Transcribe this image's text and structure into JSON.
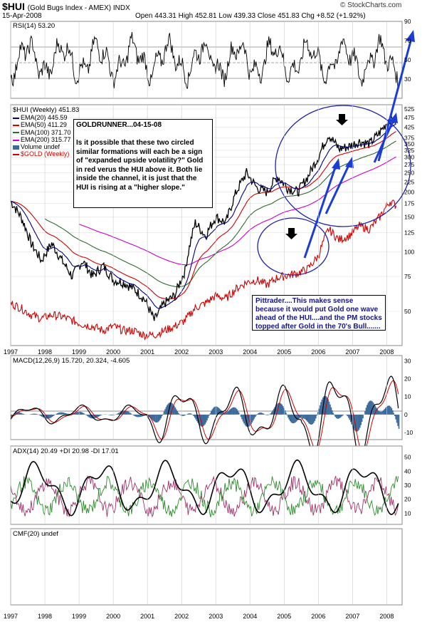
{
  "header": {
    "symbol": "$HUI",
    "name": "(Gold Bugs Index - AMEX) INDX",
    "date": "15-Apr-2008",
    "ohlc": "Open 443.31  High 452.81  Low 439.33  Close 451.83  Chg +8.52 (+1.92%)",
    "brand": "© StockCharts.com"
  },
  "panels": {
    "rsi_label": "RSI(14) 53.20",
    "price_label": "$HUI (Weekly) 451.83",
    "macd_label": "MACD(12,26,9) 15.720, 20.324, -4.605",
    "adx_label": "ADX(14) 20.49  +DI 20.98  -DI 17.01",
    "cmf_label": "CMF(20) undef"
  },
  "legend": [
    {
      "label": "EMA(20) 445.59",
      "color": "#000080"
    },
    {
      "label": "EMA(50) 411.29",
      "color": "#d00000"
    },
    {
      "label": "EMA(100) 371.70",
      "color": "#2e6b2e"
    },
    {
      "label": "EMA(200) 315.77",
      "color": "#cc00cc"
    },
    {
      "label": "Volume undef",
      "color": "#3d6b9c"
    },
    {
      "label": "$GOLD (Weekly)",
      "color": "#d00000"
    }
  ],
  "annotations": {
    "goldrunner": "GOLDRUNNER...04-15-08\n\nIs it possible that these two circled similar formations will each be a sign of \"expanded upside volatility?\" Gold in red verus the HUI above it. Both lie inside the channel, it is just that the HUI is rising at a \"higher slope.\"",
    "pittrader": "Pittrader....This makes sense because it would put Gold one wave ahead of the HUI....and the PM stocks topped after Gold in the 70's Bull......."
  },
  "chart_data": [
    {
      "type": "line",
      "title": "RSI(14) 53.20",
      "ylim": [
        10,
        90
      ],
      "y_ticks": [
        70,
        50,
        30
      ],
      "series": [
        {
          "name": "RSI(14)",
          "last": 53.2
        }
      ]
    },
    {
      "type": "line",
      "title": "$HUI (Weekly) 451.83",
      "log_scale": true,
      "y_ticks": [
        525,
        475,
        425,
        375,
        350,
        325,
        300,
        275,
        250,
        225,
        200,
        175,
        150,
        125,
        100,
        75,
        50
      ],
      "x_ticks": [
        "1997",
        "1998",
        "1999",
        "2000",
        "2001",
        "2002",
        "2003",
        "2004",
        "2005",
        "2006",
        "2007",
        "2008"
      ],
      "x": [
        1997.0,
        1997.3,
        1997.6,
        1997.9,
        1998.2,
        1998.5,
        1998.8,
        1999.1,
        1999.4,
        1999.7,
        2000.0,
        2000.3,
        2000.6,
        2000.9,
        2001.2,
        2001.5,
        2001.8,
        2002.1,
        2002.4,
        2002.7,
        2003.0,
        2003.3,
        2003.6,
        2003.9,
        2004.2,
        2004.5,
        2004.8,
        2005.1,
        2005.4,
        2005.7,
        2006.0,
        2006.3,
        2006.6,
        2006.9,
        2007.2,
        2007.5,
        2007.8,
        2008.1,
        2008.3
      ],
      "series": [
        {
          "name": "$HUI",
          "values": [
            180,
            150,
            110,
            90,
            110,
            90,
            75,
            90,
            75,
            85,
            72,
            70,
            65,
            58,
            45,
            55,
            60,
            80,
            140,
            120,
            150,
            140,
            200,
            250,
            210,
            200,
            240,
            210,
            200,
            240,
            300,
            390,
            330,
            340,
            360,
            350,
            400,
            470,
            451.83
          ]
        },
        {
          "name": "EMA(20)",
          "last": 445.59
        },
        {
          "name": "EMA(50)",
          "last": 411.29
        },
        {
          "name": "EMA(100)",
          "last": 371.7
        },
        {
          "name": "EMA(200)",
          "last": 315.77
        },
        {
          "name": "$GOLD (Weekly)",
          "values": [
            55,
            52,
            48,
            46,
            48,
            47,
            45,
            43,
            42,
            40,
            42,
            40,
            40,
            38,
            38,
            40,
            42,
            45,
            52,
            55,
            60,
            58,
            65,
            70,
            72,
            68,
            74,
            76,
            78,
            82,
            95,
            130,
            115,
            120,
            135,
            130,
            150,
            180,
            170
          ]
        }
      ]
    },
    {
      "type": "line",
      "title": "MACD(12,26,9) 15.720, 20.324, -4.605",
      "y_ticks": [
        30,
        20,
        10,
        0,
        -10
      ],
      "ylim": [
        -14,
        33
      ],
      "series": [
        {
          "name": "MACD",
          "last": 15.72
        },
        {
          "name": "Signal",
          "last": 20.324
        },
        {
          "name": "Histogram",
          "last": -4.605
        }
      ]
    },
    {
      "type": "line",
      "title": "ADX(14) 20.49 +DI 20.98 -DI 17.01",
      "y_ticks": [
        50,
        40,
        30,
        20,
        10
      ],
      "ylim": [
        2,
        58
      ],
      "series": [
        {
          "name": "ADX(14)",
          "last": 20.49
        },
        {
          "name": "+DI",
          "last": 20.98
        },
        {
          "name": "-DI",
          "last": 17.01
        }
      ]
    },
    {
      "type": "line",
      "title": "CMF(20) undef",
      "series": []
    }
  ]
}
